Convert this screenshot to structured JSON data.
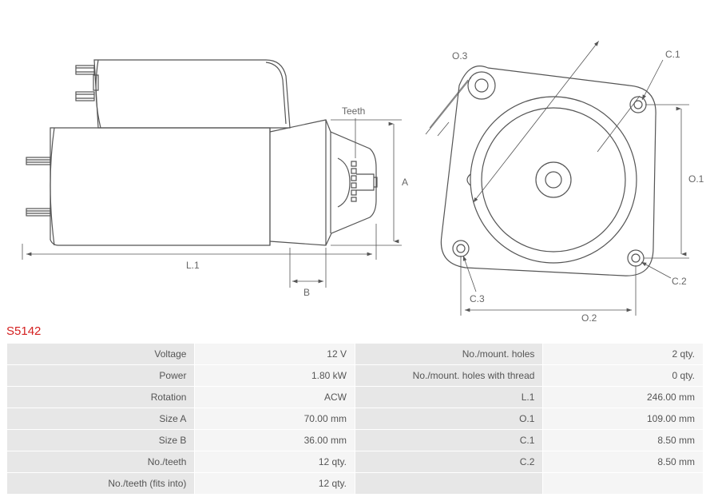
{
  "part_number": "S5142",
  "diagram": {
    "left": {
      "labels": {
        "teeth": "Teeth",
        "L1": "L.1",
        "A": "A",
        "B": "B"
      },
      "stroke": "#555555",
      "fill": "none",
      "label_color": "#666666",
      "label_fontsize": 12
    },
    "right": {
      "labels": {
        "O1": "O.1",
        "O2": "O.2",
        "O3": "O.3",
        "C1": "C.1",
        "C2": "C.2",
        "C3": "C.3"
      },
      "stroke": "#555555",
      "fill": "none",
      "label_color": "#666666",
      "label_fontsize": 12
    }
  },
  "specs": {
    "left": [
      {
        "label": "Voltage",
        "value": "12 V"
      },
      {
        "label": "Power",
        "value": "1.80 kW"
      },
      {
        "label": "Rotation",
        "value": "ACW"
      },
      {
        "label": "Size A",
        "value": "70.00 mm"
      },
      {
        "label": "Size B",
        "value": "36.00 mm"
      },
      {
        "label": "No./teeth",
        "value": "12 qty."
      },
      {
        "label": "No./teeth (fits into)",
        "value": "12 qty."
      }
    ],
    "right": [
      {
        "label": "No./mount. holes",
        "value": "2 qty."
      },
      {
        "label": "No./mount. holes with thread",
        "value": "0 qty."
      },
      {
        "label": "L.1",
        "value": "246.00 mm"
      },
      {
        "label": "O.1",
        "value": "109.00 mm"
      },
      {
        "label": "C.1",
        "value": "8.50 mm"
      },
      {
        "label": "C.2",
        "value": "8.50 mm"
      },
      {
        "label": "",
        "value": ""
      }
    ]
  },
  "style": {
    "title_color": "#d42020",
    "table_label_bg": "#e7e7e7",
    "table_value_bg": "#f5f5f5",
    "border_color": "#ffffff",
    "text_color": "#555555"
  }
}
